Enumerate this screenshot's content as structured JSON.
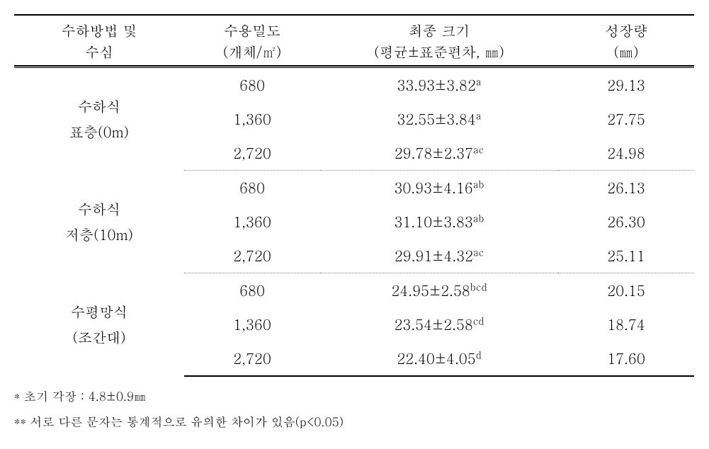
{
  "header": {
    "col1_line1": "수하방법 및",
    "col1_line2": "수심",
    "col2_line1": "수용밀도",
    "col2_line2": "(개체/㎡)",
    "col3_line1": "최종 크기",
    "col3_line2": "(평균±표준편차, ㎜)",
    "col4_line1": "성장량",
    "col4_line2": "(㎜)"
  },
  "groups": [
    {
      "method_line1": "수하식",
      "method_line2": "표층(0m)",
      "rows": [
        {
          "density": "680",
          "size": "33.93±3.82",
          "sup": "a",
          "growth": "29.13"
        },
        {
          "density": "1,360",
          "size": "32.55±3.84",
          "sup": "a",
          "growth": "27.75"
        },
        {
          "density": "2,720",
          "size": "29.78±2.37",
          "sup": "ac",
          "growth": "24.98"
        }
      ]
    },
    {
      "method_line1": "수하식",
      "method_line2": "저층(10m)",
      "rows": [
        {
          "density": "680",
          "size": "30.93±4.16",
          "sup": "ab",
          "growth": "26.13"
        },
        {
          "density": "1,360",
          "size": "31.10±3.83",
          "sup": "ab",
          "growth": "26.30"
        },
        {
          "density": "2,720",
          "size": "29.91±4.32",
          "sup": "ac",
          "growth": "25.11"
        }
      ]
    },
    {
      "method_line1": "수평망식",
      "method_line2": "(조간대)",
      "rows": [
        {
          "density": "680",
          "size": "24.95±2.58",
          "sup": "bcd",
          "growth": "20.15"
        },
        {
          "density": "1,360",
          "size": "23.54±2.58",
          "sup": "cd",
          "growth": "18.74"
        },
        {
          "density": "2,720",
          "size": "22.40±4.05",
          "sup": "d",
          "growth": "17.60"
        }
      ]
    }
  ],
  "footnote1": "* 초기 각장 : 4.8±0.9㎜",
  "footnote2": "** 서로 다른 문자는 통계적으로 유의한 차이가 있음(p<0.05)",
  "col_widths": [
    "25%",
    "20%",
    "35%",
    "20%"
  ]
}
